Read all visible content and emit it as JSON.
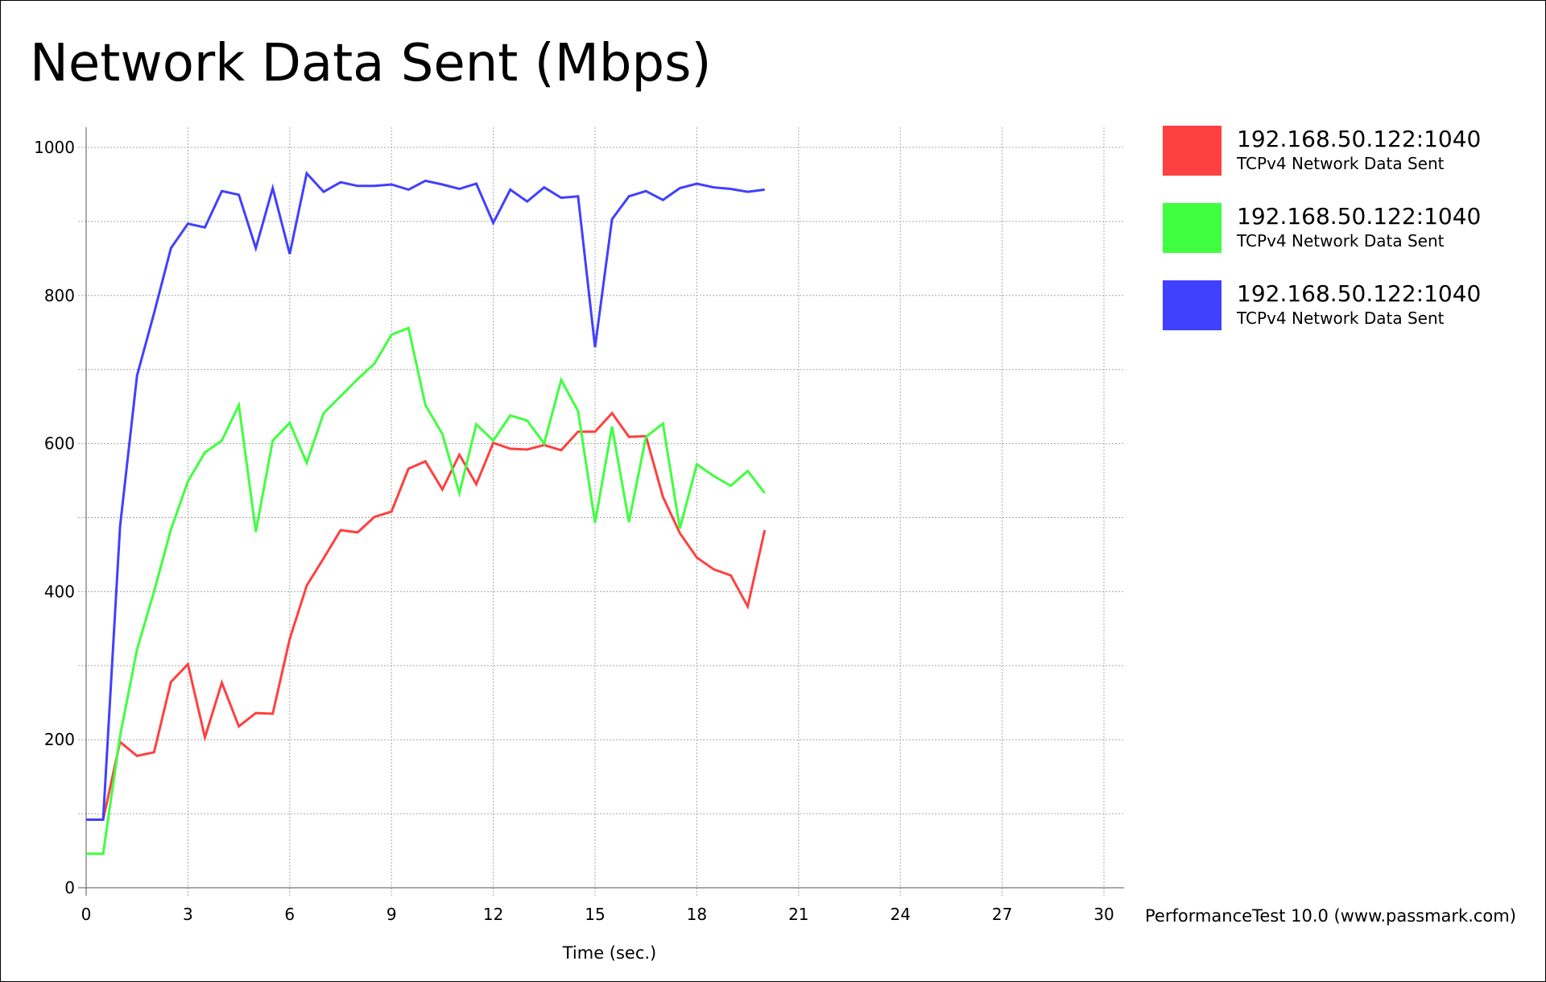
{
  "chart_data": {
    "type": "line",
    "title": "Network Data Sent (Mbps)",
    "xlabel": "Time (sec.)",
    "ylabel": "",
    "xlim": [
      0,
      30
    ],
    "ylim": [
      0,
      1000
    ],
    "xticks": [
      "0",
      "3",
      "6",
      "9",
      "12",
      "15",
      "18",
      "21",
      "24",
      "27",
      "30"
    ],
    "yticks": [
      "0",
      "200",
      "400",
      "600",
      "800",
      "1000"
    ],
    "grid": true,
    "legend_position": "right",
    "series": [
      {
        "name": "192.168.50.122:1040",
        "description": "TCPv4 Network Data Sent",
        "color": "#ff4040",
        "x": [
          0,
          0.5,
          1,
          1.5,
          2,
          2.5,
          3,
          3.5,
          4,
          4.5,
          5,
          5.5,
          6,
          6.5,
          7,
          7.5,
          8,
          8.5,
          9,
          9.5,
          10,
          10.5,
          11,
          11.5,
          12,
          12.5,
          13,
          13.5,
          14,
          14.5,
          15,
          15.5,
          16,
          16.5,
          17,
          17.5,
          18,
          18.5,
          19,
          19.5,
          20
        ],
        "y": [
          92,
          92,
          197,
          178,
          183,
          278,
          302,
          203,
          277,
          218,
          236,
          235,
          336,
          408,
          445,
          483,
          480,
          501,
          508,
          566,
          576,
          538,
          585,
          545,
          601,
          593,
          592,
          598,
          591,
          616,
          616,
          641,
          609,
          610,
          528,
          479,
          446,
          430,
          422,
          380,
          483
        ]
      },
      {
        "name": "192.168.50.122:1040",
        "description": "TCPv4 Network Data Sent",
        "color": "#40ff40",
        "x": [
          0,
          0.5,
          1,
          1.5,
          2,
          2.5,
          3,
          3.5,
          4,
          4.5,
          5,
          5.5,
          6,
          6.5,
          7,
          7.5,
          8,
          8.5,
          9,
          9.5,
          10,
          10.5,
          11,
          11.5,
          12,
          12.5,
          13,
          13.5,
          14,
          14.5,
          15,
          15.5,
          16,
          16.5,
          17,
          17.5,
          18,
          18.5,
          19,
          19.5,
          20
        ],
        "y": [
          46,
          46,
          205,
          322,
          400,
          484,
          549,
          588,
          604,
          652,
          481,
          604,
          628,
          574,
          641,
          664,
          687,
          708,
          747,
          756,
          652,
          613,
          533,
          626,
          604,
          638,
          631,
          600,
          686,
          644,
          493,
          623,
          494,
          609,
          627,
          485,
          572,
          556,
          543,
          563,
          533
        ]
      },
      {
        "name": "192.168.50.122:1040",
        "description": "TCPv4 Network Data Sent",
        "color": "#4040ff",
        "x": [
          0,
          0.5,
          1,
          1.5,
          2,
          2.5,
          3,
          3.5,
          4,
          4.5,
          5,
          5.5,
          6,
          6.5,
          7,
          7.5,
          8,
          8.5,
          9,
          9.5,
          10,
          10.5,
          11,
          11.5,
          12,
          12.5,
          13,
          13.5,
          14,
          14.5,
          15,
          15.5,
          16,
          16.5,
          17,
          17.5,
          18,
          18.5,
          19,
          19.5,
          20
        ],
        "y": [
          92,
          92,
          488,
          692,
          776,
          864,
          897,
          892,
          941,
          936,
          864,
          945,
          856,
          965,
          940,
          953,
          948,
          948,
          950,
          943,
          955,
          950,
          944,
          951,
          898,
          943,
          927,
          946,
          932,
          934,
          730,
          903,
          934,
          941,
          929,
          945,
          951,
          946,
          944,
          940,
          943
        ]
      }
    ]
  },
  "watermark": "PerformanceTest 10.0 (www.passmark.com)"
}
